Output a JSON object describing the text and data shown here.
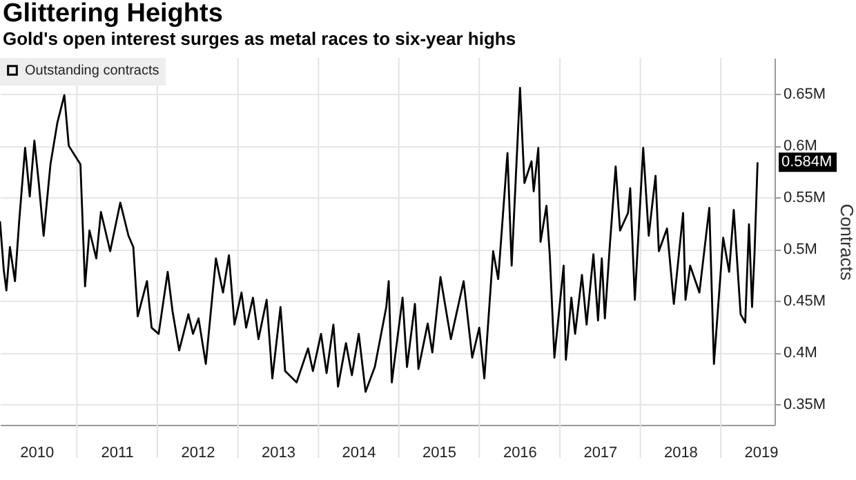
{
  "chart_data": {
    "type": "line",
    "title": "Glittering Heights",
    "subtitle": "Gold's open interest surges as metal races to six-year highs",
    "ylabel": "Contracts",
    "x": [
      "2010-01-17",
      "2010-02-03",
      "2010-02-15",
      "2010-03-03",
      "2010-03-26",
      "2010-04-14",
      "2010-05-11",
      "2010-06-01",
      "2010-06-22",
      "2010-07-12",
      "2010-08-03",
      "2010-09-03",
      "2010-10-04",
      "2010-11-05",
      "2010-11-25",
      "2011-01-17",
      "2011-02-07",
      "2011-02-27",
      "2011-03-30",
      "2011-04-20",
      "2011-06-01",
      "2011-07-17",
      "2011-08-23",
      "2011-09-14",
      "2011-10-04",
      "2011-11-15",
      "2011-12-06",
      "2012-01-07",
      "2012-02-17",
      "2012-03-10",
      "2012-04-09",
      "2012-05-21",
      "2012-06-11",
      "2012-07-06",
      "2012-08-08",
      "2012-09-23",
      "2012-10-25",
      "2012-11-21",
      "2012-12-16",
      "2013-01-17",
      "2013-02-07",
      "2013-03-10",
      "2013-04-04",
      "2013-05-11",
      "2013-06-06",
      "2013-07-13",
      "2013-08-03",
      "2013-09-24",
      "2013-11-15",
      "2013-12-07",
      "2014-01-13",
      "2014-02-07",
      "2014-03-10",
      "2014-03-31",
      "2014-05-06",
      "2014-06-02",
      "2014-07-03",
      "2014-08-03",
      "2014-09-14",
      "2014-11-05",
      "2014-11-16",
      "2014-11-30",
      "2015-01-18",
      "2015-02-07",
      "2015-03-15",
      "2015-03-31",
      "2015-05-12",
      "2015-06-02",
      "2015-07-09",
      "2015-08-25",
      "2015-10-22",
      "2015-11-30",
      "2016-01-01",
      "2016-01-24",
      "2016-03-04",
      "2016-03-27",
      "2016-05-08",
      "2016-05-27",
      "2016-07-04",
      "2016-07-14",
      "2016-07-24",
      "2016-08-25",
      "2016-09-04",
      "2016-09-25",
      "2016-10-05",
      "2016-11-01",
      "2016-11-16",
      "2016-12-07",
      "2017-01-18",
      "2017-01-28",
      "2017-02-22",
      "2017-03-11",
      "2017-04-11",
      "2017-05-02",
      "2017-06-02",
      "2017-06-23",
      "2017-07-10",
      "2017-07-24",
      "2017-08-15",
      "2017-09-11",
      "2017-10-01",
      "2017-11-06",
      "2017-11-16",
      "2017-12-07",
      "2018-01-14",
      "2018-02-08",
      "2018-03-11",
      "2018-03-26",
      "2018-05-02",
      "2018-06-02",
      "2018-07-14",
      "2018-07-25",
      "2018-08-15",
      "2018-09-26",
      "2018-11-10",
      "2018-12-01",
      "2019-01-12",
      "2019-02-08",
      "2019-03-01",
      "2019-04-01",
      "2019-04-22",
      "2019-05-09",
      "2019-05-23",
      "2019-06-03",
      "2019-06-17"
    ],
    "series": [
      {
        "name": "Outstanding contracts",
        "color": "#000000",
        "values": [
          0.527,
          0.48,
          0.46,
          0.502,
          0.469,
          0.527,
          0.598,
          0.551,
          0.605,
          0.564,
          0.513,
          0.582,
          0.622,
          0.649,
          0.6,
          0.582,
          0.464,
          0.518,
          0.491,
          0.536,
          0.498,
          0.545,
          0.513,
          0.502,
          0.435,
          0.469,
          0.424,
          0.418,
          0.478,
          0.44,
          0.402,
          0.437,
          0.418,
          0.433,
          0.389,
          0.491,
          0.458,
          0.494,
          0.427,
          0.458,
          0.424,
          0.453,
          0.413,
          0.451,
          0.375,
          0.444,
          0.382,
          0.371,
          0.404,
          0.382,
          0.418,
          0.38,
          0.427,
          0.367,
          0.409,
          0.378,
          0.418,
          0.362,
          0.386,
          0.444,
          0.469,
          0.371,
          0.453,
          0.386,
          0.447,
          0.384,
          0.428,
          0.4,
          0.473,
          0.413,
          0.469,
          0.395,
          0.424,
          0.375,
          0.498,
          0.471,
          0.593,
          0.484,
          0.656,
          0.609,
          0.564,
          0.585,
          0.556,
          0.598,
          0.507,
          0.542,
          0.494,
          0.395,
          0.484,
          0.393,
          0.453,
          0.418,
          0.475,
          0.427,
          0.495,
          0.431,
          0.491,
          0.433,
          0.502,
          0.58,
          0.518,
          0.535,
          0.559,
          0.451,
          0.598,
          0.513,
          0.571,
          0.498,
          0.52,
          0.447,
          0.535,
          0.451,
          0.484,
          0.458,
          0.54,
          0.389,
          0.511,
          0.478,
          0.538,
          0.437,
          0.429,
          0.524,
          0.444,
          0.495,
          0.584
        ],
        "value_labels": [
          null,
          null,
          null,
          null,
          null,
          null,
          null,
          null,
          null,
          null,
          null,
          null,
          null,
          null,
          null,
          null,
          null,
          null,
          null,
          null,
          null,
          null,
          null,
          null,
          null,
          null,
          null,
          null,
          null,
          null,
          null,
          null,
          null,
          null,
          null,
          null,
          null,
          null,
          null,
          null,
          null,
          null,
          null,
          null,
          null,
          null,
          null,
          null,
          null,
          null,
          null,
          null,
          null,
          null,
          null,
          null,
          null,
          null,
          null,
          null,
          null,
          null,
          null,
          null,
          null,
          null,
          null,
          null,
          null,
          null,
          null,
          null,
          null,
          null,
          null,
          null,
          null,
          null,
          null,
          null,
          null,
          null,
          null,
          null,
          null,
          null,
          null,
          null,
          null,
          null,
          null,
          null,
          null,
          null,
          null,
          null,
          null,
          null,
          null,
          null,
          null,
          null,
          null,
          null,
          null,
          null,
          null,
          null,
          null,
          null,
          null,
          null,
          null,
          null,
          null,
          null,
          null,
          null,
          null,
          null,
          null,
          null,
          null,
          null,
          "0.584M"
        ]
      }
    ],
    "xlim": [
      "2010-01-17",
      "2019-09-02"
    ],
    "xticks": [
      {
        "value": "2010-07-01",
        "label": "2010"
      },
      {
        "value": "2011-07-01",
        "label": "2011"
      },
      {
        "value": "2012-07-01",
        "label": "2012"
      },
      {
        "value": "2013-07-01",
        "label": "2013"
      },
      {
        "value": "2014-07-01",
        "label": "2014"
      },
      {
        "value": "2015-07-01",
        "label": "2015"
      },
      {
        "value": "2016-07-01",
        "label": "2016"
      },
      {
        "value": "2017-07-01",
        "label": "2017"
      },
      {
        "value": "2018-07-01",
        "label": "2018"
      },
      {
        "value": "2019-07-01",
        "label": "2019"
      }
    ],
    "ylim": [
      0.33,
      0.685
    ],
    "yticks": [
      {
        "value": 0.35,
        "label": "0.35M"
      },
      {
        "value": 0.4,
        "label": "0.4M"
      },
      {
        "value": 0.45,
        "label": "0.45M"
      },
      {
        "value": 0.5,
        "label": "0.5M"
      },
      {
        "value": 0.55,
        "label": "0.55M"
      },
      {
        "value": 0.6,
        "label": "0.6M"
      },
      {
        "value": 0.65,
        "label": "0.65M"
      }
    ],
    "grid": true,
    "legend": "top left",
    "marker": "none",
    "line_style": "solid"
  }
}
